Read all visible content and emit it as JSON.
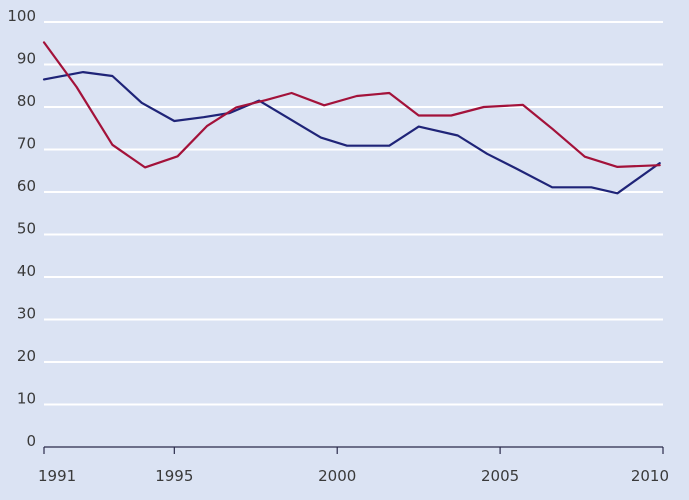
{
  "colors": {
    "background": "#dbe3f3",
    "grid": "#ffffff",
    "axis": "#2a2a4a",
    "series_blue": "#1f2478",
    "series_red": "#a3123a"
  },
  "chart_data": {
    "type": "line",
    "title": "",
    "xlabel": "",
    "ylabel": "",
    "xlim": [
      1991,
      2010
    ],
    "ylim": [
      0,
      100
    ],
    "grid": true,
    "legend": "none",
    "x_ticks": [
      "1991",
      "1995",
      "2000",
      "2005",
      "2010"
    ],
    "y_ticks": [
      "0",
      "10",
      "20",
      "30",
      "40",
      "50",
      "60",
      "70",
      "80",
      "90",
      "100"
    ],
    "series": [
      {
        "color": "#1f2478",
        "x": [
          1991.0,
          1992.2,
          1993.1,
          1994.0,
          1995.0,
          1995.9,
          1996.7,
          1997.6,
          1998.5,
          1999.5,
          2000.3,
          2001.6,
          2002.5,
          2003.7,
          2004.6,
          2005.5,
          2006.6,
          2007.8,
          2008.6,
          2009.9
        ],
        "values": [
          86.5,
          88.2,
          87.3,
          81.0,
          76.7,
          77.6,
          78.6,
          81.5,
          77.4,
          72.8,
          70.9,
          70.9,
          75.4,
          73.3,
          69.0,
          65.5,
          61.1,
          61.1,
          59.7,
          66.8
        ]
      },
      {
        "color": "#a3123a",
        "x": [
          1991.0,
          1992.0,
          1993.1,
          1994.1,
          1995.1,
          1996.0,
          1996.9,
          1997.8,
          1998.6,
          1999.6,
          2000.6,
          2001.6,
          2002.5,
          2003.5,
          2004.5,
          2005.7,
          2006.6,
          2007.6,
          2008.6,
          2009.9
        ],
        "values": [
          95.2,
          84.7,
          71.1,
          65.8,
          68.4,
          75.5,
          79.9,
          81.6,
          83.3,
          80.4,
          82.6,
          83.3,
          78.0,
          78.0,
          80.0,
          80.5,
          74.9,
          68.3,
          65.9,
          66.3
        ]
      }
    ]
  }
}
